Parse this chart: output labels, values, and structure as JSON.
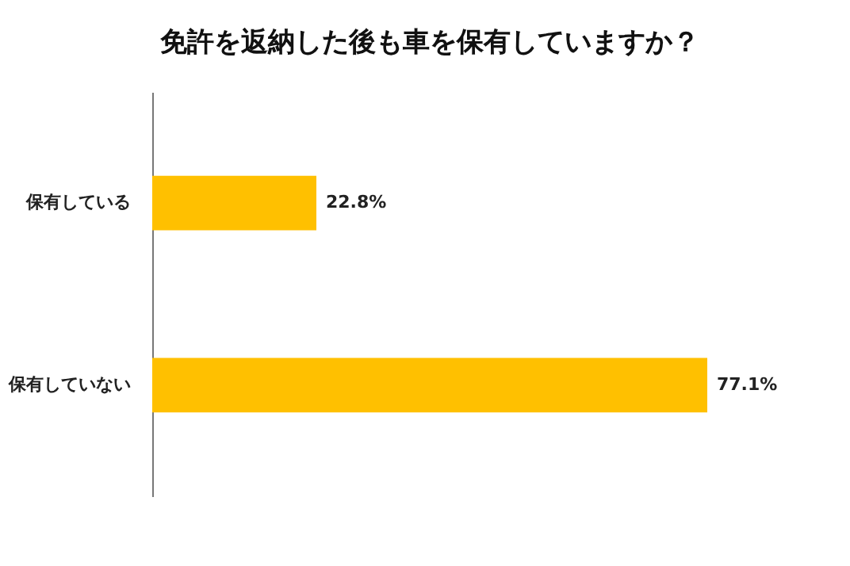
{
  "chart_data": {
    "type": "bar",
    "orientation": "horizontal",
    "title": "免許を返納した後も車を保有していますか？",
    "categories": [
      "保有している",
      "保有していない"
    ],
    "values": [
      22.8,
      77.1
    ],
    "value_labels": [
      "22.8%",
      "77.1%"
    ],
    "color": "#ffc000",
    "grid": false
  }
}
